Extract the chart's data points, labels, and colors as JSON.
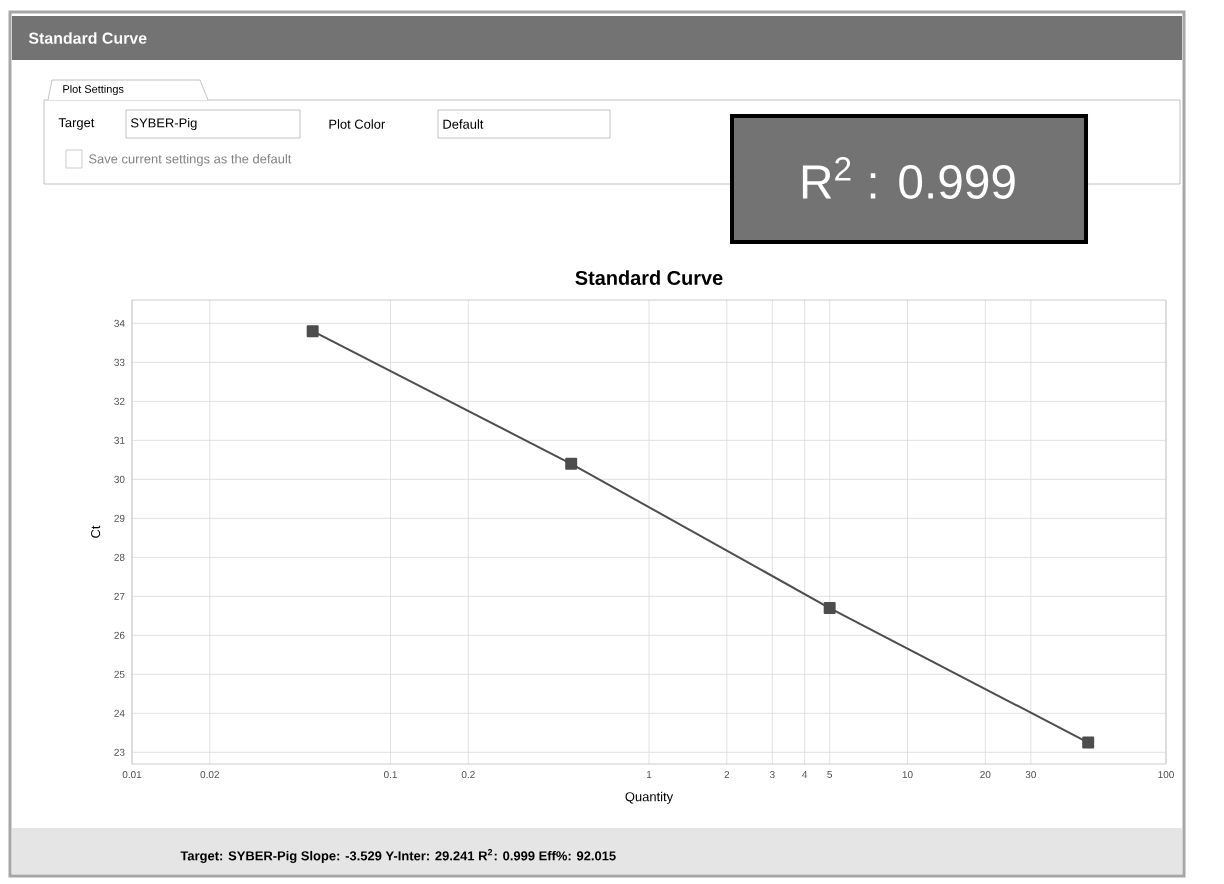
{
  "chart_data": {
    "type": "line",
    "title": "Standard Curve",
    "xlabel": "Quantity",
    "ylabel": "Ct",
    "log": "x",
    "grid": true,
    "marker": "square",
    "line_style": "solid",
    "xlim": [
      0.01,
      100
    ],
    "ylim": [
      22.7,
      34.6
    ],
    "xticks": [
      0.01,
      0.02,
      0.1,
      0.2,
      1,
      2,
      3,
      4,
      5,
      10,
      20,
      30,
      100
    ],
    "yticks": [
      23,
      24,
      25,
      26,
      27,
      28,
      29,
      30,
      31,
      32,
      33,
      34
    ],
    "series": [
      {
        "color": "#4d4d4d",
        "x": [
          0.05,
          0.5,
          5,
          50
        ],
        "values": [
          33.8,
          30.4,
          26.7,
          23.25
        ]
      }
    ],
    "annotations": [
      "Standard Curve",
      "Plot Settings",
      "Target",
      "SYBER-Pig",
      "Plot Color",
      "Default",
      "Save current settings as the default",
      "R$^{2}$ : 0.999",
      "Target: SYBER-Pig Slope: -3.529 Y-Inter: 29.241 R$^{2}$: 0.999 Eff%: 92.015"
    ]
  }
}
